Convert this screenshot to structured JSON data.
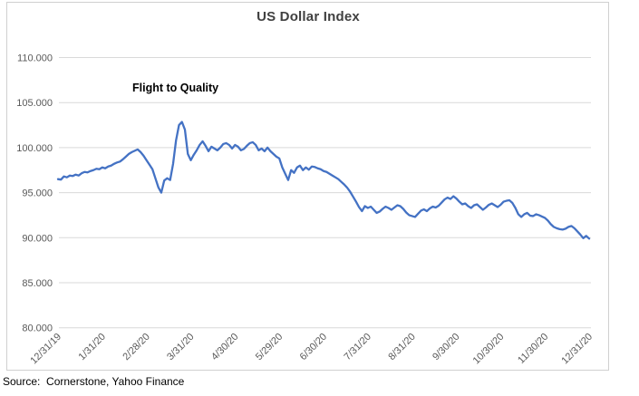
{
  "source_note": "Source:  Cornerstone, Yahoo Finance",
  "colors": {
    "line": "#4472C4",
    "gridline": "#D9D9D9",
    "tick_label": "#595959",
    "title": "#404040",
    "frame_border": "#D0D0D0",
    "background": "#FFFFFF"
  },
  "chart_data": {
    "type": "line",
    "title": "US Dollar Index",
    "annotation": "Flight to Quality",
    "xlabel": "",
    "ylabel": "",
    "ylim": [
      80,
      110
    ],
    "grid": true,
    "legend": false,
    "y_tick_values": [
      110,
      105,
      100,
      95,
      90,
      85,
      80
    ],
    "y_tick_labels": [
      "110.000",
      "105.000",
      "100.000",
      "95.000",
      "90.000",
      "85.000",
      "80.000"
    ],
    "x_tick_labels": [
      "12/31/19",
      "1/31/20",
      "2/28/20",
      "3/31/20",
      "4/30/20",
      "5/29/20",
      "6/30/20",
      "7/31/20",
      "8/31/20",
      "9/30/20",
      "10/30/20",
      "11/30/20",
      "12/31/20"
    ],
    "series": [
      {
        "name": "US Dollar Index",
        "values": [
          96.5,
          96.45,
          96.8,
          96.7,
          96.9,
          96.85,
          97.0,
          96.9,
          97.15,
          97.3,
          97.25,
          97.4,
          97.5,
          97.65,
          97.6,
          97.8,
          97.7,
          97.9,
          98.0,
          98.2,
          98.35,
          98.45,
          98.7,
          99.0,
          99.3,
          99.5,
          99.65,
          99.8,
          99.5,
          99.1,
          98.6,
          98.1,
          97.6,
          96.6,
          95.6,
          95.0,
          96.35,
          96.6,
          96.4,
          98.2,
          100.8,
          102.5,
          102.85,
          102.0,
          99.3,
          98.6,
          99.2,
          99.7,
          100.3,
          100.7,
          100.2,
          99.6,
          100.1,
          99.9,
          99.7,
          100.0,
          100.4,
          100.5,
          100.3,
          99.9,
          100.3,
          100.1,
          99.7,
          99.85,
          100.2,
          100.5,
          100.6,
          100.3,
          99.7,
          99.9,
          99.6,
          100.0,
          99.6,
          99.3,
          99.0,
          98.8,
          97.8,
          97.1,
          96.4,
          97.5,
          97.2,
          97.8,
          98.0,
          97.5,
          97.8,
          97.55,
          97.9,
          97.85,
          97.7,
          97.6,
          97.4,
          97.3,
          97.1,
          96.9,
          96.7,
          96.5,
          96.2,
          95.9,
          95.55,
          95.1,
          94.55,
          94.0,
          93.4,
          92.95,
          93.5,
          93.3,
          93.45,
          93.1,
          92.75,
          92.9,
          93.2,
          93.45,
          93.3,
          93.1,
          93.35,
          93.6,
          93.5,
          93.2,
          92.8,
          92.5,
          92.4,
          92.3,
          92.65,
          93.0,
          93.15,
          92.95,
          93.25,
          93.45,
          93.35,
          93.55,
          93.9,
          94.25,
          94.45,
          94.3,
          94.6,
          94.35,
          94.0,
          93.7,
          93.8,
          93.5,
          93.3,
          93.6,
          93.7,
          93.4,
          93.1,
          93.35,
          93.65,
          93.8,
          93.6,
          93.4,
          93.65,
          94.0,
          94.1,
          94.15,
          93.85,
          93.3,
          92.6,
          92.3,
          92.6,
          92.75,
          92.45,
          92.4,
          92.6,
          92.5,
          92.35,
          92.2,
          91.9,
          91.5,
          91.2,
          91.05,
          90.95,
          90.9,
          91.0,
          91.2,
          91.3,
          91.05,
          90.7,
          90.35,
          89.95,
          90.2,
          89.9
        ]
      }
    ]
  }
}
